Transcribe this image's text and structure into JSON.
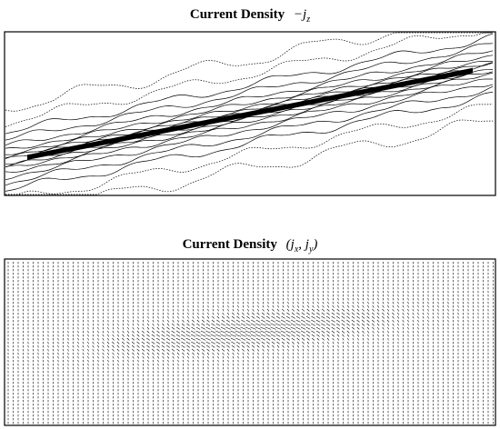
{
  "panels": [
    {
      "title": "Current Density",
      "math": [
        {
          "text": "−j"
        },
        {
          "sub": "z"
        }
      ]
    },
    {
      "title": "Current Density",
      "math": [
        {
          "text": "("
        },
        {
          "text": "j"
        },
        {
          "sub": "x"
        },
        {
          "text": ", j"
        },
        {
          "sub": "y"
        },
        {
          "text": ")"
        }
      ]
    }
  ]
}
